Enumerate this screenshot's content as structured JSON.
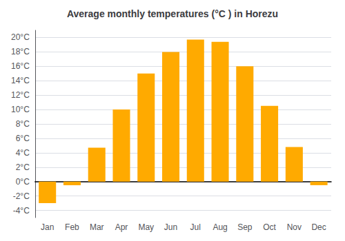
{
  "chart_data": {
    "type": "bar",
    "title": "Average monthly temperatures (°C ) in Horezu",
    "categories": [
      "Jan",
      "Feb",
      "Mar",
      "Apr",
      "May",
      "Jun",
      "Jul",
      "Aug",
      "Sep",
      "Oct",
      "Nov",
      "Dec"
    ],
    "values": [
      -3.0,
      -0.5,
      4.7,
      10.0,
      15.0,
      18.0,
      19.7,
      19.4,
      16.0,
      10.5,
      4.8,
      -0.5
    ],
    "color": "#FFAA00",
    "ylim": [
      -5,
      21
    ],
    "yticks": [
      {
        "value": -4,
        "label": "-4°C"
      },
      {
        "value": -2,
        "label": "-2°C"
      },
      {
        "value": 0,
        "label": "0°C"
      },
      {
        "value": 2,
        "label": "2°C"
      },
      {
        "value": 4,
        "label": "4°C"
      },
      {
        "value": 6,
        "label": "6°C"
      },
      {
        "value": 8,
        "label": "8°C"
      },
      {
        "value": 10,
        "label": "10°C"
      },
      {
        "value": 12,
        "label": "12°C"
      },
      {
        "value": 14,
        "label": "14°C"
      },
      {
        "value": 16,
        "label": "16°C"
      },
      {
        "value": 18,
        "label": "18°C"
      },
      {
        "value": 20,
        "label": "20°C"
      }
    ],
    "grid": true
  }
}
